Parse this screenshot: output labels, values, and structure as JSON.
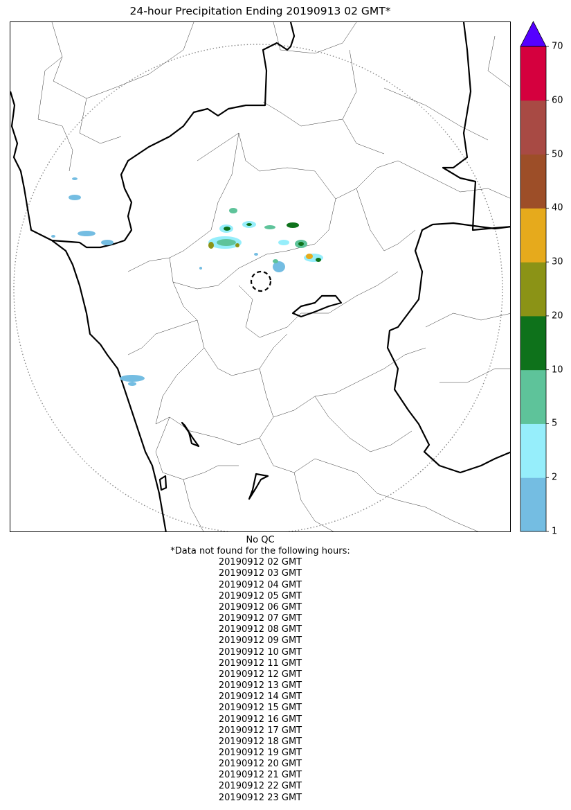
{
  "title": "24-hour Precipitation Ending 20190913 02 GMT*",
  "colorbar": {
    "ticks": [
      "1",
      "2",
      "5",
      "10",
      "20",
      "30",
      "40",
      "50",
      "60",
      "70"
    ],
    "colors": [
      "#74bde2",
      "#96eefb",
      "#5ec39a",
      "#0e721b",
      "#8b9316",
      "#e6aa1c",
      "#9d4e28",
      "#a84a44",
      "#d5003e"
    ],
    "extend_color": "#5500ff"
  },
  "notes": {
    "qc": "No QC",
    "missing_header": "*Data not found for the following hours:",
    "missing_hours": [
      "20190912 02 GMT",
      "20190912 03 GMT",
      "20190912 04 GMT",
      "20190912 05 GMT",
      "20190912 06 GMT",
      "20190912 07 GMT",
      "20190912 08 GMT",
      "20190912 09 GMT",
      "20190912 10 GMT",
      "20190912 11 GMT",
      "20190912 12 GMT",
      "20190912 13 GMT",
      "20190912 14 GMT",
      "20190912 15 GMT",
      "20190912 16 GMT",
      "20190912 17 GMT",
      "20190912 18 GMT",
      "20190912 19 GMT",
      "20190912 20 GMT",
      "20190912 21 GMT",
      "20190912 22 GMT",
      "20190912 23 GMT"
    ]
  }
}
